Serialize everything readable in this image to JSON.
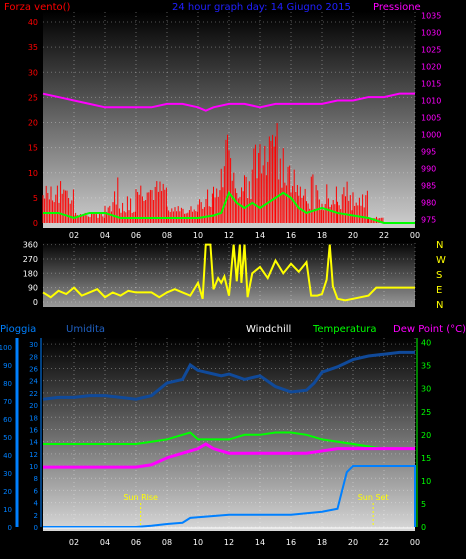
{
  "colors": {
    "wind": "#ff0000",
    "gust": "#00ff00",
    "pressure": "#ff00ff",
    "title": "#2020ff",
    "direction": "#ffff00",
    "rain": "#0080ff",
    "humidity": "#104a9a",
    "windchill": "#ffffff",
    "temperature": "#00ff00",
    "dewpoint": "#ff00ff",
    "sun": "#ffff00",
    "axis_white": "#ffffff"
  },
  "header_top": {
    "wind_label": "Forza vento()",
    "title": "24 hour graph day:  14 Giugno 2015",
    "pressure_label": "Pressione"
  },
  "header_bottom": {
    "rain_label": "Pioggia",
    "humidity_label": "Umidita",
    "windchill_label": "Windchill",
    "temperature_label": "Temperatura",
    "dewpoint_label": "Dew Point (°C)"
  },
  "chart_data": [
    {
      "type": "line",
      "panel": "wind-pressure",
      "x_ticks": [
        "02",
        "04",
        "06",
        "08",
        "10",
        "12",
        "14",
        "16",
        "18",
        "20",
        "22",
        "00"
      ],
      "y_left_ticks": [
        "0",
        "5",
        "10",
        "15",
        "20",
        "25",
        "30",
        "35",
        "40"
      ],
      "ylim_left": [
        0,
        42
      ],
      "y_right_ticks": [
        "975",
        "980",
        "985",
        "990",
        "995",
        "1000",
        "1005",
        "1010",
        "1015",
        "1020",
        "1025",
        "1030",
        "1035"
      ],
      "ylim_right": [
        974,
        1036
      ],
      "series": [
        {
          "name": "Forza vento()",
          "segments": [
            [
              0,
              7,
              2
            ],
            [
              2,
              2,
              1
            ],
            [
              4,
              4,
              6
            ],
            [
              6,
              8,
              1
            ],
            [
              8,
              3,
              1
            ],
            [
              10,
              5,
              3
            ],
            [
              11,
              7,
              10
            ],
            [
              11.5,
              10,
              6
            ],
            [
              11.7,
              19,
              5
            ],
            [
              12,
              12,
              6
            ],
            [
              12.5,
              6,
              10
            ],
            [
              13,
              9,
              8
            ],
            [
              13.5,
              15,
              7
            ],
            [
              14,
              11,
              11
            ],
            [
              14.5,
              16,
              8
            ],
            [
              15,
              12,
              15
            ],
            [
              15.5,
              14,
              8
            ],
            [
              16,
              11,
              9
            ],
            [
              16.5,
              7,
              4
            ],
            [
              17,
              5,
              7
            ],
            [
              18,
              5,
              3
            ],
            [
              19,
              5,
              4
            ],
            [
              20,
              6,
              2
            ],
            [
              21,
              1,
              1
            ],
            [
              22,
              0,
              0
            ]
          ]
        },
        {
          "name": "gust",
          "values": [
            [
              0,
              2
            ],
            [
              1,
              2
            ],
            [
              2,
              1
            ],
            [
              3,
              2
            ],
            [
              4,
              2
            ],
            [
              5,
              1
            ],
            [
              6,
              1
            ],
            [
              7,
              1
            ],
            [
              8,
              1
            ],
            [
              9,
              1
            ],
            [
              10,
              1
            ],
            [
              11,
              1.5
            ],
            [
              11.5,
              2
            ],
            [
              12,
              6
            ],
            [
              12.5,
              4
            ],
            [
              13,
              3
            ],
            [
              13.5,
              4
            ],
            [
              14,
              3
            ],
            [
              14.5,
              4
            ],
            [
              15,
              5
            ],
            [
              15.5,
              6
            ],
            [
              16,
              5
            ],
            [
              16.5,
              3
            ],
            [
              17,
              2
            ],
            [
              18,
              3
            ],
            [
              19,
              2
            ],
            [
              20,
              1.5
            ],
            [
              21,
              1
            ],
            [
              22,
              0
            ],
            [
              24,
              0
            ]
          ]
        },
        {
          "name": "Pressione",
          "values": [
            [
              0,
              1012
            ],
            [
              1,
              1011
            ],
            [
              2,
              1010
            ],
            [
              3,
              1009
            ],
            [
              4,
              1008
            ],
            [
              5,
              1008
            ],
            [
              6,
              1008
            ],
            [
              7,
              1008
            ],
            [
              8,
              1009
            ],
            [
              9,
              1009
            ],
            [
              10,
              1008
            ],
            [
              10.5,
              1007
            ],
            [
              11,
              1008
            ],
            [
              12,
              1009
            ],
            [
              13,
              1009
            ],
            [
              14,
              1008
            ],
            [
              15,
              1009
            ],
            [
              16,
              1009
            ],
            [
              17,
              1009
            ],
            [
              18,
              1009
            ],
            [
              19,
              1010
            ],
            [
              20,
              1010
            ],
            [
              21,
              1011
            ],
            [
              22,
              1011
            ],
            [
              23,
              1012
            ],
            [
              24,
              1012
            ]
          ]
        }
      ]
    },
    {
      "type": "scatter",
      "panel": "wind-direction",
      "y_ticks": [
        "0",
        "90",
        "180",
        "270",
        "360"
      ],
      "ylim": [
        0,
        370
      ],
      "compass": [
        "N",
        "W",
        "S",
        "E",
        "N"
      ],
      "series": [
        {
          "name": "direction",
          "values": [
            [
              0,
              60
            ],
            [
              0.5,
              30
            ],
            [
              1,
              70
            ],
            [
              1.5,
              50
            ],
            [
              2,
              90
            ],
            [
              2.5,
              40
            ],
            [
              3,
              60
            ],
            [
              3.5,
              80
            ],
            [
              4,
              30
            ],
            [
              4.5,
              60
            ],
            [
              5,
              40
            ],
            [
              5.5,
              70
            ],
            [
              6,
              60
            ],
            [
              6.5,
              60
            ],
            [
              7,
              60
            ],
            [
              7.5,
              30
            ],
            [
              8,
              60
            ],
            [
              8.5,
              80
            ],
            [
              9,
              60
            ],
            [
              9.5,
              40
            ],
            [
              10,
              120
            ],
            [
              10.3,
              20
            ],
            [
              10.5,
              360
            ],
            [
              10.8,
              360
            ],
            [
              11,
              80
            ],
            [
              11.3,
              150
            ],
            [
              11.5,
              120
            ],
            [
              11.7,
              160
            ],
            [
              12,
              40
            ],
            [
              12.3,
              360
            ],
            [
              12.5,
              130
            ],
            [
              12.7,
              360
            ],
            [
              12.8,
              120
            ],
            [
              13,
              360
            ],
            [
              13.2,
              30
            ],
            [
              13.5,
              180
            ],
            [
              14,
              220
            ],
            [
              14.5,
              150
            ],
            [
              15,
              260
            ],
            [
              15.5,
              180
            ],
            [
              16,
              240
            ],
            [
              16.5,
              190
            ],
            [
              17,
              250
            ],
            [
              17.3,
              40
            ],
            [
              17.7,
              40
            ],
            [
              18,
              50
            ],
            [
              18.3,
              140
            ],
            [
              18.5,
              360
            ],
            [
              18.7,
              100
            ],
            [
              19,
              20
            ],
            [
              19.5,
              10
            ],
            [
              20,
              20
            ],
            [
              21,
              40
            ],
            [
              21.5,
              90
            ],
            [
              22,
              90
            ],
            [
              23,
              90
            ],
            [
              24,
              90
            ]
          ]
        }
      ]
    },
    {
      "type": "line",
      "panel": "rain-humidity-temperature",
      "y_far_ticks": [
        "0",
        "10",
        "20",
        "30",
        "40",
        "50",
        "60",
        "70",
        "80",
        "90",
        "100"
      ],
      "ylim_far": [
        0,
        105
      ],
      "y_near_ticks": [
        "0",
        "2",
        "4",
        "6",
        "8",
        "10",
        "12",
        "14",
        "16",
        "18",
        "20",
        "22",
        "24",
        "26",
        "28",
        "30"
      ],
      "ylim_near": [
        0,
        31
      ],
      "y_right_ticks": [
        "0",
        "5",
        "10",
        "15",
        "20",
        "25",
        "30",
        "35",
        "40"
      ],
      "ylim_right": [
        0,
        41
      ],
      "x_ticks": [
        "02",
        "04",
        "06",
        "08",
        "10",
        "12",
        "14",
        "16",
        "18",
        "20",
        "22",
        "00"
      ],
      "sun_rise_label": "Sun Rise",
      "sun_set_label": "Sun Set",
      "sun_rise_hour": 6.3,
      "sun_set_hour": 21.3,
      "series": [
        {
          "name": "Pioggia",
          "values": [
            [
              0,
              0
            ],
            [
              6,
              0
            ],
            [
              7,
              0.2
            ],
            [
              8,
              0.5
            ],
            [
              9,
              0.7
            ],
            [
              9.5,
              1.5
            ],
            [
              12,
              2
            ],
            [
              14,
              2
            ],
            [
              16,
              2
            ],
            [
              18,
              2.5
            ],
            [
              19,
              3
            ],
            [
              19.3,
              6
            ],
            [
              19.6,
              9
            ],
            [
              20,
              10
            ],
            [
              24,
              10
            ],
            [
              24,
              0
            ]
          ]
        },
        {
          "name": "Umidita",
          "values": [
            [
              0,
              71
            ],
            [
              1,
              72
            ],
            [
              2,
              72
            ],
            [
              3,
              73
            ],
            [
              4,
              73
            ],
            [
              5,
              72
            ],
            [
              6,
              71
            ],
            [
              7,
              73
            ],
            [
              8,
              80
            ],
            [
              9,
              82
            ],
            [
              9.5,
              90
            ],
            [
              10,
              87
            ],
            [
              11,
              85
            ],
            [
              11.5,
              84
            ],
            [
              12,
              85
            ],
            [
              13,
              82
            ],
            [
              14,
              84
            ],
            [
              15,
              78
            ],
            [
              16,
              75
            ],
            [
              17,
              76
            ],
            [
              17.5,
              80
            ],
            [
              18,
              86
            ],
            [
              19,
              89
            ],
            [
              20,
              93
            ],
            [
              21,
              95
            ],
            [
              22,
              96
            ],
            [
              23,
              97
            ],
            [
              24,
              97
            ]
          ]
        },
        {
          "name": "Windchill",
          "values": []
        },
        {
          "name": "Temperatura",
          "values": [
            [
              0,
              18
            ],
            [
              1,
              18
            ],
            [
              2,
              18
            ],
            [
              3,
              18
            ],
            [
              4,
              18
            ],
            [
              5,
              18
            ],
            [
              6,
              18
            ],
            [
              7,
              18.5
            ],
            [
              8,
              19
            ],
            [
              9,
              20
            ],
            [
              9.5,
              20.5
            ],
            [
              10,
              19
            ],
            [
              11,
              19
            ],
            [
              12,
              19
            ],
            [
              13,
              20
            ],
            [
              14,
              20
            ],
            [
              15,
              20.5
            ],
            [
              16,
              20.5
            ],
            [
              17,
              20
            ],
            [
              18,
              19
            ],
            [
              19,
              18.5
            ],
            [
              20,
              18
            ],
            [
              21,
              17.5
            ],
            [
              22,
              17
            ],
            [
              23,
              17
            ],
            [
              24,
              17
            ]
          ]
        },
        {
          "name": "Dew Point (°C)",
          "values": [
            [
              0,
              13
            ],
            [
              1,
              13
            ],
            [
              2,
              13
            ],
            [
              3,
              13
            ],
            [
              4,
              13
            ],
            [
              5,
              13
            ],
            [
              6,
              13
            ],
            [
              7,
              13.5
            ],
            [
              8,
              15
            ],
            [
              9,
              16
            ],
            [
              10,
              17
            ],
            [
              10.5,
              18
            ],
            [
              11,
              17
            ],
            [
              12,
              16
            ],
            [
              13,
              16
            ],
            [
              14,
              16
            ],
            [
              15,
              16
            ],
            [
              16,
              16
            ],
            [
              17,
              16
            ],
            [
              18,
              16.5
            ],
            [
              19,
              17
            ],
            [
              20,
              17
            ],
            [
              21,
              17
            ],
            [
              22,
              17
            ],
            [
              23,
              17
            ],
            [
              24,
              17
            ]
          ]
        }
      ]
    }
  ]
}
